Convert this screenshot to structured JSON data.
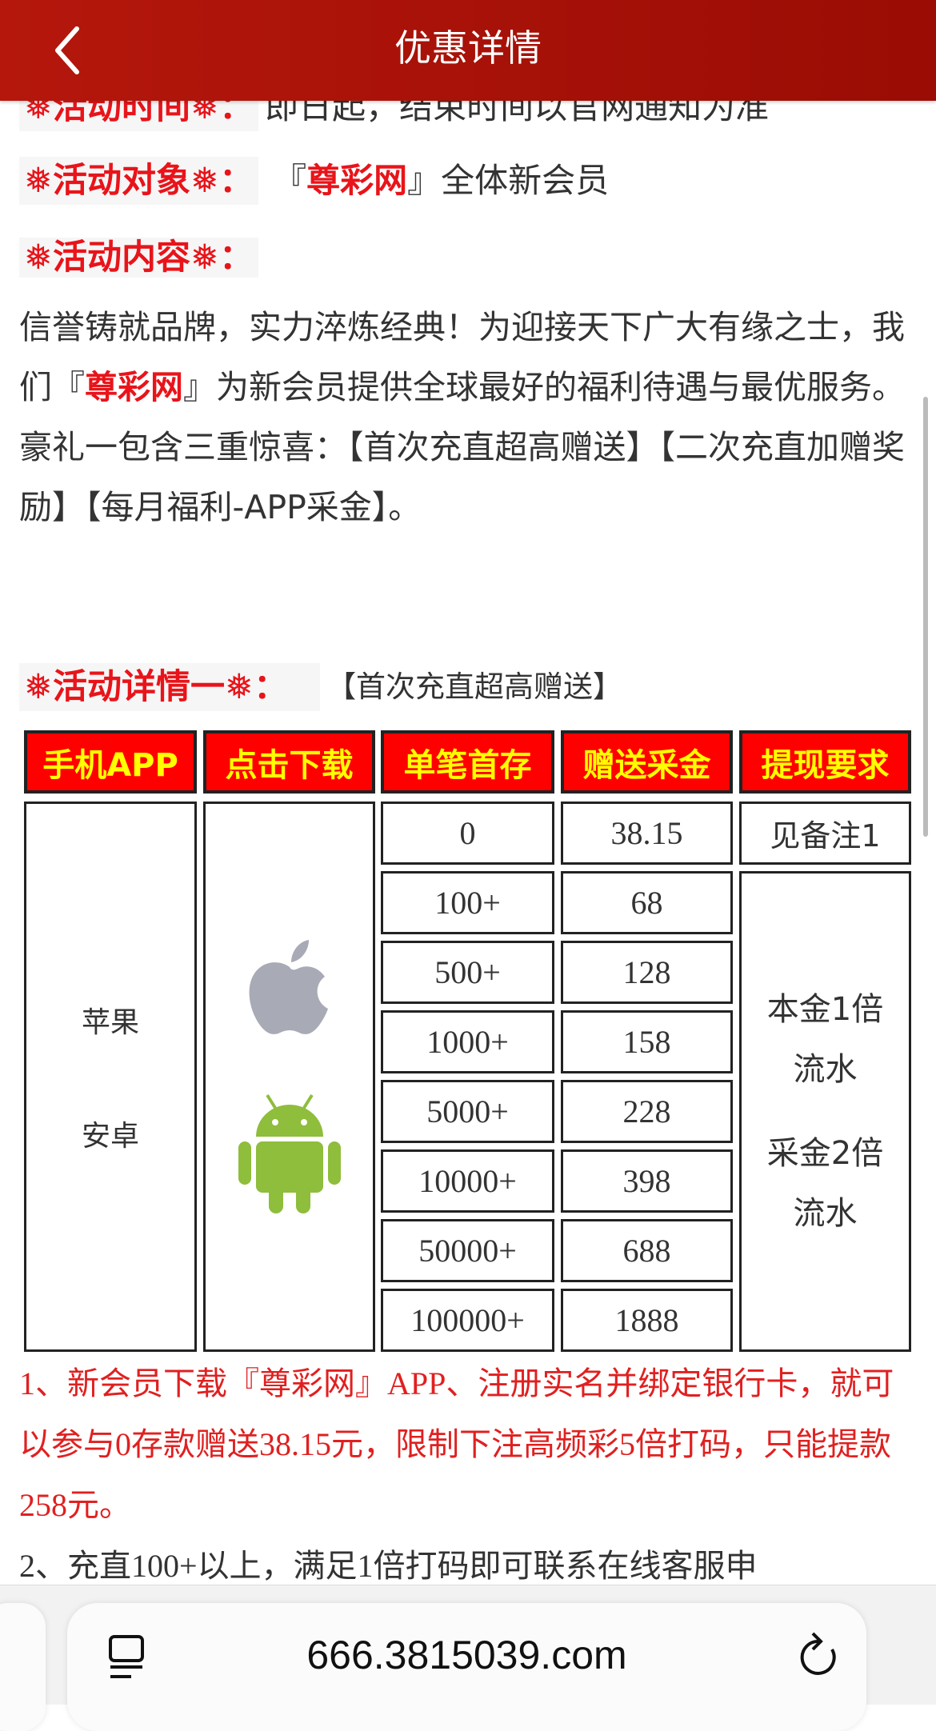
{
  "header": {
    "title": "优惠详情",
    "back_icon": "chevron-left-icon"
  },
  "info": {
    "time_label": "❅活动时间❅：",
    "time_value": "即日起，结束时间以官网通知为准",
    "target_label": "❅活动对象❅：",
    "target_prefix": "『",
    "target_brand": "尊彩网",
    "target_suffix": "』全体新会员",
    "content_label": "❅活动内容❅："
  },
  "content": {
    "part1": "信誉铸就品牌，实力淬炼经典！为迎接天下广大有缘之士，我们『",
    "brand": "尊彩网",
    "part2": "』为新会员提供全球最好的福利待遇与最优服务。豪礼一包含三重惊喜：【首次充直超高赠送】【二次充直加赠奖励】【每月福利-APP采金】。"
  },
  "detail1": {
    "label": "❅活动详情一❅：",
    "subtitle": "【首次充直超高赠送】"
  },
  "table": {
    "headers": [
      "手机APP",
      "点击下载",
      "单笔首存",
      "赠送采金",
      "提现要求"
    ],
    "platforms": [
      "苹果",
      "安卓"
    ],
    "rows": [
      {
        "deposit": "0",
        "bonus": "38.15"
      },
      {
        "deposit": "100+",
        "bonus": "68"
      },
      {
        "deposit": "500+",
        "bonus": "128"
      },
      {
        "deposit": "1000+",
        "bonus": "158"
      },
      {
        "deposit": "5000+",
        "bonus": "228"
      },
      {
        "deposit": "10000+",
        "bonus": "398"
      },
      {
        "deposit": "50000+",
        "bonus": "688"
      },
      {
        "deposit": "100000+",
        "bonus": "1888"
      }
    ],
    "req_first": "见备注1",
    "req_rest_1": "本金1倍流水",
    "req_rest_2": "采金2倍流水"
  },
  "notes": [
    "1、新会员下载『尊彩网』APP、注册实名并绑定银行卡，就可以参与0存款赠送38.15元，限制下注高频彩5倍打码，只能提款258元。",
    "2、充直100+以上，满足1倍打码即可联系在线客服申"
  ],
  "browser": {
    "url": "666.3815039.com"
  },
  "colors": {
    "header": "#b5170c",
    "accent_red": "#e8141a",
    "table_header_bg": "#ff0000",
    "table_header_text": "#ffff00"
  }
}
